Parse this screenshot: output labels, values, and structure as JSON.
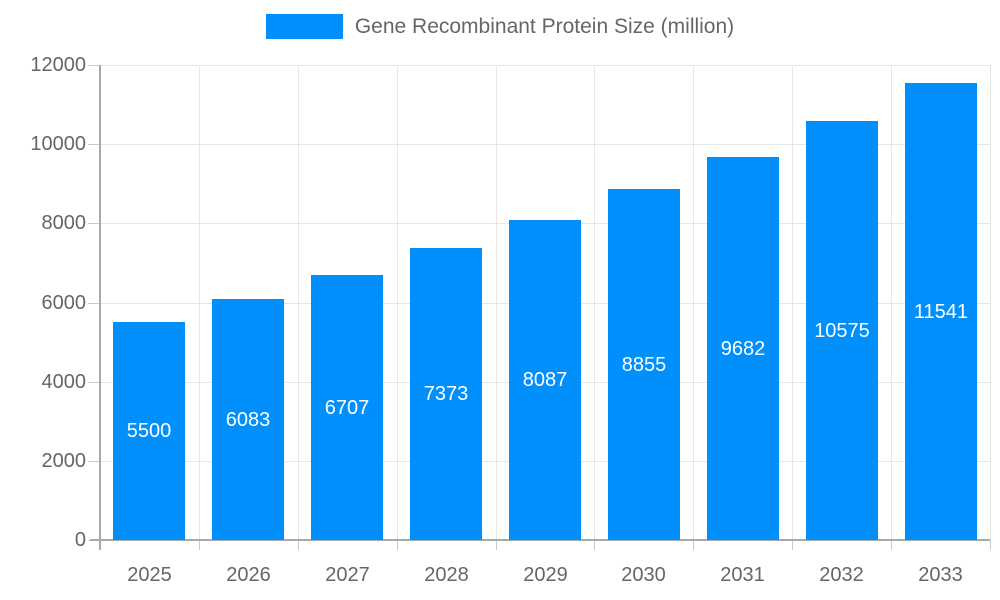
{
  "legend": {
    "items": [
      {
        "label": "Gene Recombinant Protein Size (million)",
        "color": "#008FFB"
      }
    ]
  },
  "chart_data": {
    "type": "bar",
    "title": "Gene Recombinant Protein Size (million)",
    "categories": [
      "2025",
      "2026",
      "2027",
      "2028",
      "2029",
      "2030",
      "2031",
      "2032",
      "2033"
    ],
    "values": [
      5500,
      6083,
      6707,
      7373,
      8087,
      8855,
      9682,
      10575,
      11541
    ],
    "xlabel": "",
    "ylabel": "",
    "ylim": [
      0,
      12000
    ],
    "yticks": [
      0,
      2000,
      4000,
      6000,
      8000,
      10000,
      12000
    ],
    "grid": true,
    "legend_position": "top",
    "bar_labels_inside": true,
    "colors": {
      "bar": "#008FFB",
      "bar_label": "#FFFFFF",
      "axis_text": "#666666",
      "gridline": "#E6E6E6",
      "axis_line": "#A8A8A8",
      "tick": "#C9C9C9",
      "background": "#FFFFFF"
    }
  }
}
